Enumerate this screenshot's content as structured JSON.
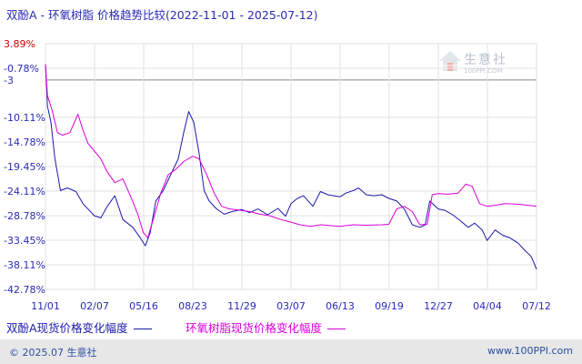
{
  "title": "双酚A - 环氧树脂 价格趋势比较(2022-11-01 - 2025-07-12)",
  "legend": [
    {
      "label": "双酚A现货价格变化幅度",
      "color": "#1a1aa8"
    },
    {
      "label": "环氧树脂现货价格变化幅度",
      "color": "#d800d8"
    }
  ],
  "watermark": {
    "name": "生意社",
    "url": "100PPI.COM"
  },
  "footer": {
    "left": "© 2025.07 生意社",
    "right": "www.100PPI.com"
  },
  "colors": {
    "axis_label": "#2a2ab8",
    "highlight_label": "#d00000",
    "grid": "#e2e2e2",
    "baseline": "#888888"
  },
  "chart_data": {
    "type": "line",
    "title": "双酚A - 环氧树脂 价格趋势比较(2022-11-01 - 2025-07-12)",
    "xlabel": "",
    "ylabel": "",
    "x_ticks": [
      "11/01",
      "02/07",
      "05/16",
      "08/23",
      "11/29",
      "03/07",
      "06/13",
      "09/19",
      "12/27",
      "04/04",
      "07/12"
    ],
    "x_range": [
      "2022-11-01",
      "2025-07-12"
    ],
    "y_ticks": [
      "3.89%",
      "-0.78%",
      "-3",
      "-10.11%",
      "-14.78%",
      "-19.45%",
      "-24.11%",
      "-28.78%",
      "-33.45%",
      "-38.11%",
      "-42.78%"
    ],
    "y_highlight": "3.89%",
    "ylim": [
      -42.78,
      3.89
    ],
    "baseline": -3,
    "grid": true,
    "legend_position": "bottom",
    "series": [
      {
        "name": "双酚A现货价格变化幅度",
        "points": [
          [
            "2022-11-01",
            0.0
          ],
          [
            "2022-11-05",
            -8.0
          ],
          [
            "2022-11-12",
            -11.0
          ],
          [
            "2022-11-20",
            -18.0
          ],
          [
            "2022-12-01",
            -24.0
          ],
          [
            "2022-12-15",
            -23.5
          ],
          [
            "2023-01-01",
            -24.2
          ],
          [
            "2023-01-15",
            -26.5
          ],
          [
            "2023-02-07",
            -28.8
          ],
          [
            "2023-02-20",
            -29.2
          ],
          [
            "2023-03-05",
            -27.0
          ],
          [
            "2023-03-20",
            -25.0
          ],
          [
            "2023-04-05",
            -29.5
          ],
          [
            "2023-04-25",
            -31.0
          ],
          [
            "2023-05-10",
            -33.0
          ],
          [
            "2023-05-20",
            -34.5
          ],
          [
            "2023-05-30",
            -32.0
          ],
          [
            "2023-06-10",
            -26.0
          ],
          [
            "2023-06-25",
            -24.0
          ],
          [
            "2023-07-10",
            -21.0
          ],
          [
            "2023-07-25",
            -18.0
          ],
          [
            "2023-08-05",
            -13.0
          ],
          [
            "2023-08-15",
            -9.0
          ],
          [
            "2023-08-25",
            -11.0
          ],
          [
            "2023-09-05",
            -17.0
          ],
          [
            "2023-09-15",
            -24.0
          ],
          [
            "2023-09-25",
            -26.0
          ],
          [
            "2023-10-10",
            -27.5
          ],
          [
            "2023-10-25",
            -28.5
          ],
          [
            "2023-11-10",
            -28.0
          ],
          [
            "2023-11-29",
            -27.6
          ],
          [
            "2023-12-15",
            -28.2
          ],
          [
            "2024-01-01",
            -27.5
          ],
          [
            "2024-01-20",
            -28.6
          ],
          [
            "2024-02-10",
            -27.4
          ],
          [
            "2024-02-25",
            -28.9
          ],
          [
            "2024-03-07",
            -26.5
          ],
          [
            "2024-03-20",
            -25.5
          ],
          [
            "2024-04-01",
            -25.0
          ],
          [
            "2024-04-20",
            -27.0
          ],
          [
            "2024-05-05",
            -24.2
          ],
          [
            "2024-05-20",
            -24.8
          ],
          [
            "2024-06-13",
            -25.2
          ],
          [
            "2024-06-25",
            -24.5
          ],
          [
            "2024-07-10",
            -24.0
          ],
          [
            "2024-07-20",
            -23.5
          ],
          [
            "2024-08-05",
            -24.8
          ],
          [
            "2024-08-20",
            -25.0
          ],
          [
            "2024-09-05",
            -24.8
          ],
          [
            "2024-09-19",
            -25.5
          ],
          [
            "2024-10-05",
            -26.0
          ],
          [
            "2024-10-20",
            -27.5
          ],
          [
            "2024-11-05",
            -30.5
          ],
          [
            "2024-11-20",
            -31.0
          ],
          [
            "2024-12-01",
            -30.5
          ],
          [
            "2024-12-10",
            -26.0
          ],
          [
            "2024-12-27",
            -27.5
          ],
          [
            "2025-01-10",
            -27.8
          ],
          [
            "2025-01-25",
            -28.6
          ],
          [
            "2025-02-10",
            -29.8
          ],
          [
            "2025-02-25",
            -31.0
          ],
          [
            "2025-03-10",
            -30.2
          ],
          [
            "2025-03-25",
            -31.5
          ],
          [
            "2025-04-04",
            -33.5
          ],
          [
            "2025-04-20",
            -31.5
          ],
          [
            "2025-05-05",
            -32.5
          ],
          [
            "2025-05-20",
            -33.0
          ],
          [
            "2025-06-05",
            -34.0
          ],
          [
            "2025-06-20",
            -35.5
          ],
          [
            "2025-07-01",
            -36.5
          ],
          [
            "2025-07-08",
            -38.0
          ],
          [
            "2025-07-12",
            -39.0
          ]
        ]
      },
      {
        "name": "环氧树脂现货价格变化幅度",
        "points": [
          [
            "2022-11-01",
            0.0
          ],
          [
            "2022-11-05",
            -6.0
          ],
          [
            "2022-11-15",
            -9.0
          ],
          [
            "2022-11-25",
            -13.0
          ],
          [
            "2022-12-05",
            -13.5
          ],
          [
            "2022-12-20",
            -13.0
          ],
          [
            "2023-01-05",
            -9.5
          ],
          [
            "2023-01-15",
            -12.5
          ],
          [
            "2023-01-25",
            -15.0
          ],
          [
            "2023-02-07",
            -16.5
          ],
          [
            "2023-02-20",
            -18.0
          ],
          [
            "2023-03-05",
            -20.5
          ],
          [
            "2023-03-20",
            -22.5
          ],
          [
            "2023-04-05",
            -21.8
          ],
          [
            "2023-04-20",
            -25.0
          ],
          [
            "2023-05-05",
            -28.5
          ],
          [
            "2023-05-16",
            -32.0
          ],
          [
            "2023-05-25",
            -33.0
          ],
          [
            "2023-06-05",
            -29.5
          ],
          [
            "2023-06-20",
            -24.5
          ],
          [
            "2023-07-05",
            -21.0
          ],
          [
            "2023-07-20",
            -20.0
          ],
          [
            "2023-08-05",
            -18.5
          ],
          [
            "2023-08-23",
            -17.5
          ],
          [
            "2023-09-05",
            -18.0
          ],
          [
            "2023-09-20",
            -21.0
          ],
          [
            "2023-10-05",
            -24.5
          ],
          [
            "2023-10-20",
            -27.0
          ],
          [
            "2023-11-05",
            -27.5
          ],
          [
            "2023-11-29",
            -27.8
          ],
          [
            "2023-12-15",
            -28.0
          ],
          [
            "2024-01-05",
            -28.5
          ],
          [
            "2024-01-25",
            -28.8
          ],
          [
            "2024-02-15",
            -29.5
          ],
          [
            "2024-03-07",
            -30.0
          ],
          [
            "2024-03-25",
            -30.5
          ],
          [
            "2024-04-15",
            -30.8
          ],
          [
            "2024-05-05",
            -30.5
          ],
          [
            "2024-06-13",
            -30.8
          ],
          [
            "2024-07-10",
            -30.5
          ],
          [
            "2024-08-05",
            -30.6
          ],
          [
            "2024-09-05",
            -30.5
          ],
          [
            "2024-09-19",
            -30.4
          ],
          [
            "2024-10-05",
            -27.5
          ],
          [
            "2024-10-20",
            -27.0
          ],
          [
            "2024-11-05",
            -28.0
          ],
          [
            "2024-11-20",
            -30.5
          ],
          [
            "2024-12-05",
            -30.4
          ],
          [
            "2024-12-15",
            -24.8
          ],
          [
            "2024-12-27",
            -24.6
          ],
          [
            "2025-01-15",
            -24.7
          ],
          [
            "2025-02-05",
            -24.5
          ],
          [
            "2025-02-20",
            -22.8
          ],
          [
            "2025-03-05",
            -23.2
          ],
          [
            "2025-03-20",
            -26.5
          ],
          [
            "2025-04-04",
            -27.0
          ],
          [
            "2025-04-20",
            -26.8
          ],
          [
            "2025-05-10",
            -26.5
          ],
          [
            "2025-06-05",
            -26.6
          ],
          [
            "2025-06-25",
            -26.8
          ],
          [
            "2025-07-12",
            -27.0
          ]
        ]
      }
    ]
  }
}
